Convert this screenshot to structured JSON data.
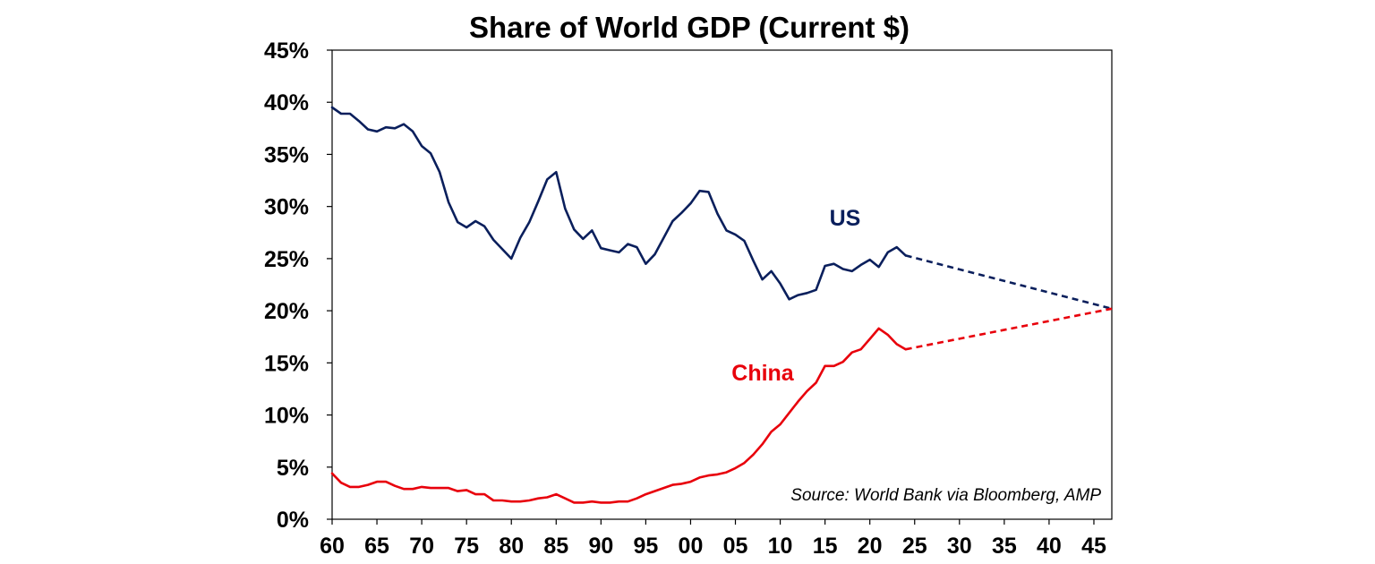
{
  "chart_data": {
    "type": "line",
    "title": "Share of World GDP (Current $)",
    "xlabel": "",
    "ylabel": "",
    "xlim": [
      1960,
      2047
    ],
    "ylim": [
      0,
      45
    ],
    "x_tick_labels": [
      "60",
      "65",
      "70",
      "75",
      "80",
      "85",
      "90",
      "95",
      "00",
      "05",
      "10",
      "15",
      "20",
      "25",
      "30",
      "35",
      "40",
      "45"
    ],
    "x_tick_years": [
      1960,
      1965,
      1970,
      1975,
      1980,
      1985,
      1990,
      1995,
      2000,
      2005,
      2010,
      2015,
      2020,
      2025,
      2030,
      2035,
      2040,
      2045
    ],
    "y_tick_labels": [
      "0%",
      "5%",
      "10%",
      "15%",
      "20%",
      "25%",
      "30%",
      "35%",
      "40%",
      "45%"
    ],
    "y_tick_values": [
      0,
      5,
      10,
      15,
      20,
      25,
      30,
      35,
      40,
      45
    ],
    "source": "Source: World Bank via Bloomberg, AMP",
    "series": [
      {
        "name": "US",
        "label": "US",
        "color": "#0a1f5c",
        "x": [
          1960,
          1961,
          1962,
          1963,
          1964,
          1965,
          1966,
          1967,
          1968,
          1969,
          1970,
          1971,
          1972,
          1973,
          1974,
          1975,
          1976,
          1977,
          1978,
          1979,
          1980,
          1981,
          1982,
          1983,
          1984,
          1985,
          1986,
          1987,
          1988,
          1989,
          1990,
          1991,
          1992,
          1993,
          1994,
          1995,
          1996,
          1997,
          1998,
          1999,
          2000,
          2001,
          2002,
          2003,
          2004,
          2005,
          2006,
          2007,
          2008,
          2009,
          2010,
          2011,
          2012,
          2013,
          2014,
          2015,
          2016,
          2017,
          2018,
          2019,
          2020,
          2021,
          2022,
          2023,
          2024
        ],
        "values": [
          39.5,
          38.9,
          38.9,
          38.2,
          37.4,
          37.2,
          37.6,
          37.5,
          37.9,
          37.2,
          35.8,
          35.1,
          33.3,
          30.4,
          28.5,
          28.0,
          28.6,
          28.1,
          26.8,
          25.9,
          25.0,
          27.0,
          28.5,
          30.5,
          32.6,
          33.3,
          29.8,
          27.8,
          26.9,
          27.7,
          26.0,
          25.8,
          25.6,
          26.4,
          26.1,
          24.5,
          25.4,
          27.0,
          28.6,
          29.4,
          30.3,
          31.5,
          31.4,
          29.3,
          27.7,
          27.3,
          26.7,
          24.8,
          23.0,
          23.8,
          22.6,
          21.1,
          21.5,
          21.7,
          22.0,
          24.3,
          24.5,
          24.0,
          23.8,
          24.4,
          24.9,
          24.2,
          25.6,
          26.1,
          25.3
        ],
        "projection": {
          "x": [
            2024,
            2047
          ],
          "values": [
            25.3,
            20.2
          ]
        }
      },
      {
        "name": "China",
        "label": "China",
        "color": "#e8000b",
        "x": [
          1960,
          1961,
          1962,
          1963,
          1964,
          1965,
          1966,
          1967,
          1968,
          1969,
          1970,
          1971,
          1972,
          1973,
          1974,
          1975,
          1976,
          1977,
          1978,
          1979,
          1980,
          1981,
          1982,
          1983,
          1984,
          1985,
          1986,
          1987,
          1988,
          1989,
          1990,
          1991,
          1992,
          1993,
          1994,
          1995,
          1996,
          1997,
          1998,
          1999,
          2000,
          2001,
          2002,
          2003,
          2004,
          2005,
          2006,
          2007,
          2008,
          2009,
          2010,
          2011,
          2012,
          2013,
          2014,
          2015,
          2016,
          2017,
          2018,
          2019,
          2020,
          2021,
          2022,
          2023,
          2024
        ],
        "values": [
          4.4,
          3.5,
          3.1,
          3.1,
          3.3,
          3.6,
          3.6,
          3.2,
          2.9,
          2.9,
          3.1,
          3.0,
          3.0,
          3.0,
          2.7,
          2.8,
          2.4,
          2.4,
          1.8,
          1.8,
          1.7,
          1.7,
          1.8,
          2.0,
          2.1,
          2.4,
          2.0,
          1.6,
          1.6,
          1.7,
          1.6,
          1.6,
          1.7,
          1.7,
          2.0,
          2.4,
          2.7,
          3.0,
          3.3,
          3.4,
          3.6,
          4.0,
          4.2,
          4.3,
          4.5,
          4.9,
          5.4,
          6.2,
          7.2,
          8.4,
          9.1,
          10.2,
          11.3,
          12.3,
          13.1,
          14.7,
          14.7,
          15.1,
          16.0,
          16.3,
          17.3,
          18.3,
          17.7,
          16.8,
          16.3
        ],
        "projection": {
          "x": [
            2024,
            2047
          ],
          "values": [
            16.3,
            20.2
          ]
        }
      }
    ]
  }
}
